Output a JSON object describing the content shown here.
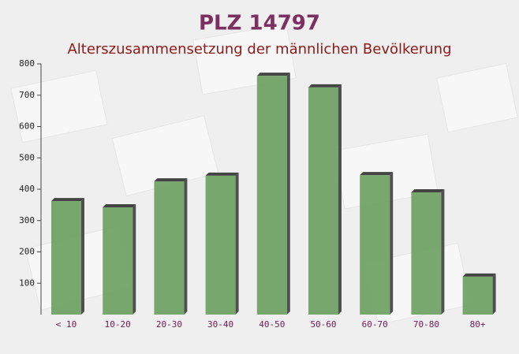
{
  "chart_data": {
    "type": "bar",
    "title": "PLZ 14797",
    "subtitle": "Alterszusammensetzung der männlichen Bevölkerung",
    "categories": [
      "< 10",
      "10-20",
      "20-30",
      "30-40",
      "40-50",
      "50-60",
      "60-70",
      "70-80",
      "80+"
    ],
    "values": [
      362,
      342,
      425,
      443,
      762,
      725,
      445,
      390,
      121
    ],
    "color": "#6a9e5e",
    "ylim": [
      0,
      800
    ],
    "yticks": [
      100,
      200,
      300,
      400,
      500,
      600,
      700,
      800
    ],
    "grid": false
  }
}
